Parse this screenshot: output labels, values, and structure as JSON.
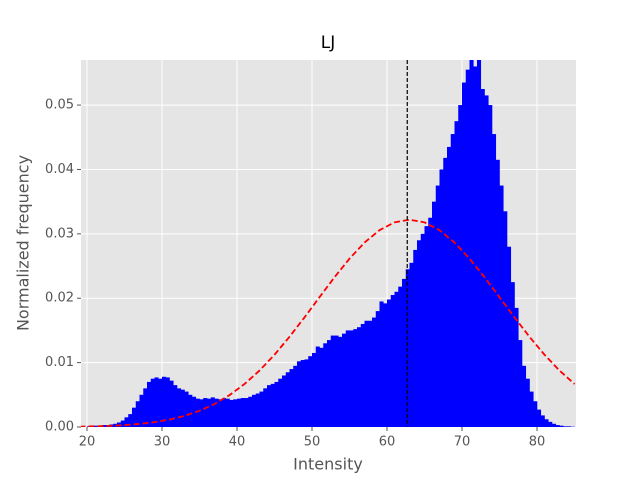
{
  "chart_data": {
    "type": "histogram",
    "title": "LJ",
    "x_label": "Intensity",
    "y_label": "Normalized frequency",
    "color": "blue",
    "bins": [
      20,
      20.5,
      21,
      21.5,
      22,
      22.5,
      23,
      23.5,
      24,
      24.5,
      25,
      25.5,
      26,
      26.5,
      27,
      27.5,
      28,
      28.5,
      29,
      29.5,
      30,
      30.5,
      31,
      31.5,
      32,
      32.5,
      33,
      33.5,
      34,
      34.5,
      35,
      35.5,
      36,
      36.5,
      37,
      37.5,
      38,
      38.5,
      39,
      39.5,
      40,
      40.5,
      41,
      41.5,
      42,
      42.5,
      43,
      43.5,
      44,
      44.5,
      45,
      45.5,
      46,
      46.5,
      47,
      47.5,
      48,
      48.5,
      49,
      49.5,
      50,
      50.5,
      51,
      51.5,
      52,
      52.5,
      53,
      53.5,
      54,
      54.5,
      55,
      55.5,
      56,
      56.5,
      57,
      57.5,
      58,
      58.5,
      59,
      59.5,
      60,
      60.5,
      61,
      61.5,
      62,
      62.5,
      63,
      63.5,
      64,
      64.5,
      65,
      65.5,
      66,
      66.5,
      67,
      67.5,
      68,
      68.5,
      69,
      69.5,
      70,
      70.5,
      71,
      71.5,
      72,
      72.5,
      73,
      73.5,
      74,
      74.5,
      75,
      75.5,
      76,
      76.5,
      77,
      77.5,
      78,
      78.5,
      79,
      79.5,
      80,
      80.5,
      81,
      81.5,
      82,
      82.5,
      83,
      83.5,
      84,
      84.5,
      85
    ],
    "values": [
      0.0001,
      0.0001,
      0.0002,
      0.0002,
      0.0003,
      0.0003,
      0.0004,
      0.0005,
      0.0007,
      0.001,
      0.0015,
      0.002,
      0.003,
      0.004,
      0.005,
      0.006,
      0.007,
      0.0075,
      0.0077,
      0.0075,
      0.0078,
      0.0077,
      0.0072,
      0.0065,
      0.006,
      0.0058,
      0.0055,
      0.005,
      0.0047,
      0.0044,
      0.0043,
      0.0045,
      0.0044,
      0.0046,
      0.0044,
      0.0043,
      0.0045,
      0.0044,
      0.0042,
      0.0043,
      0.0044,
      0.0045,
      0.0045,
      0.0047,
      0.005,
      0.0052,
      0.0055,
      0.006,
      0.0065,
      0.0067,
      0.007,
      0.0075,
      0.008,
      0.0085,
      0.009,
      0.0095,
      0.0102,
      0.0104,
      0.0105,
      0.011,
      0.0115,
      0.0125,
      0.0123,
      0.013,
      0.0135,
      0.0142,
      0.0142,
      0.014,
      0.0145,
      0.015,
      0.015,
      0.0152,
      0.0155,
      0.016,
      0.0165,
      0.0165,
      0.017,
      0.018,
      0.0195,
      0.0192,
      0.0198,
      0.0205,
      0.021,
      0.0218,
      0.023,
      0.0245,
      0.0255,
      0.0275,
      0.029,
      0.03,
      0.0312,
      0.0325,
      0.035,
      0.0375,
      0.04,
      0.0418,
      0.0435,
      0.0455,
      0.0475,
      0.05,
      0.0535,
      0.0555,
      0.0572,
      0.056,
      0.0575,
      0.0525,
      0.0515,
      0.05,
      0.0455,
      0.0415,
      0.0375,
      0.0335,
      0.028,
      0.0225,
      0.0185,
      0.0135,
      0.0095,
      0.0075,
      0.0055,
      0.004,
      0.0027,
      0.0018,
      0.0012,
      0.0008,
      0.0005,
      0.0003,
      0.0002,
      0.0001,
      0.0001,
      5e-05
    ],
    "fit": {
      "color": "red",
      "x": [
        19,
        21,
        23,
        25,
        27,
        29,
        31,
        33,
        35,
        37,
        39,
        41,
        43,
        45,
        47,
        49,
        51,
        53,
        55,
        57,
        59,
        61,
        63,
        65,
        67,
        69,
        71,
        73,
        75,
        77,
        79,
        81,
        83,
        85
      ],
      "values": [
        5.92e-05,
        0.000104,
        0.000177,
        0.000294,
        0.000476,
        0.000751,
        0.001152,
        0.001725,
        0.002517,
        0.003575,
        0.004949,
        0.006675,
        0.008768,
        0.011225,
        0.014007,
        0.017024,
        0.02016,
        0.023261,
        0.02615,
        0.028642,
        0.030568,
        0.031785,
        0.0322,
        0.031785,
        0.030568,
        0.028642,
        0.02615,
        0.023261,
        0.02016,
        0.017024,
        0.014007,
        0.011225,
        0.008768,
        0.006675
      ]
    },
    "mean_line": {
      "x": 62.7,
      "color": "black"
    },
    "xlim": [
      19.2,
      85.2
    ],
    "ylim": [
      0,
      0.057
    ],
    "xticks": [
      20,
      30,
      40,
      50,
      60,
      70,
      80
    ],
    "yticks": [
      {
        "value": 0,
        "label": "0.00"
      },
      0.01,
      0.02,
      0.03,
      0.04,
      0.05
    ],
    "grid": true
  }
}
